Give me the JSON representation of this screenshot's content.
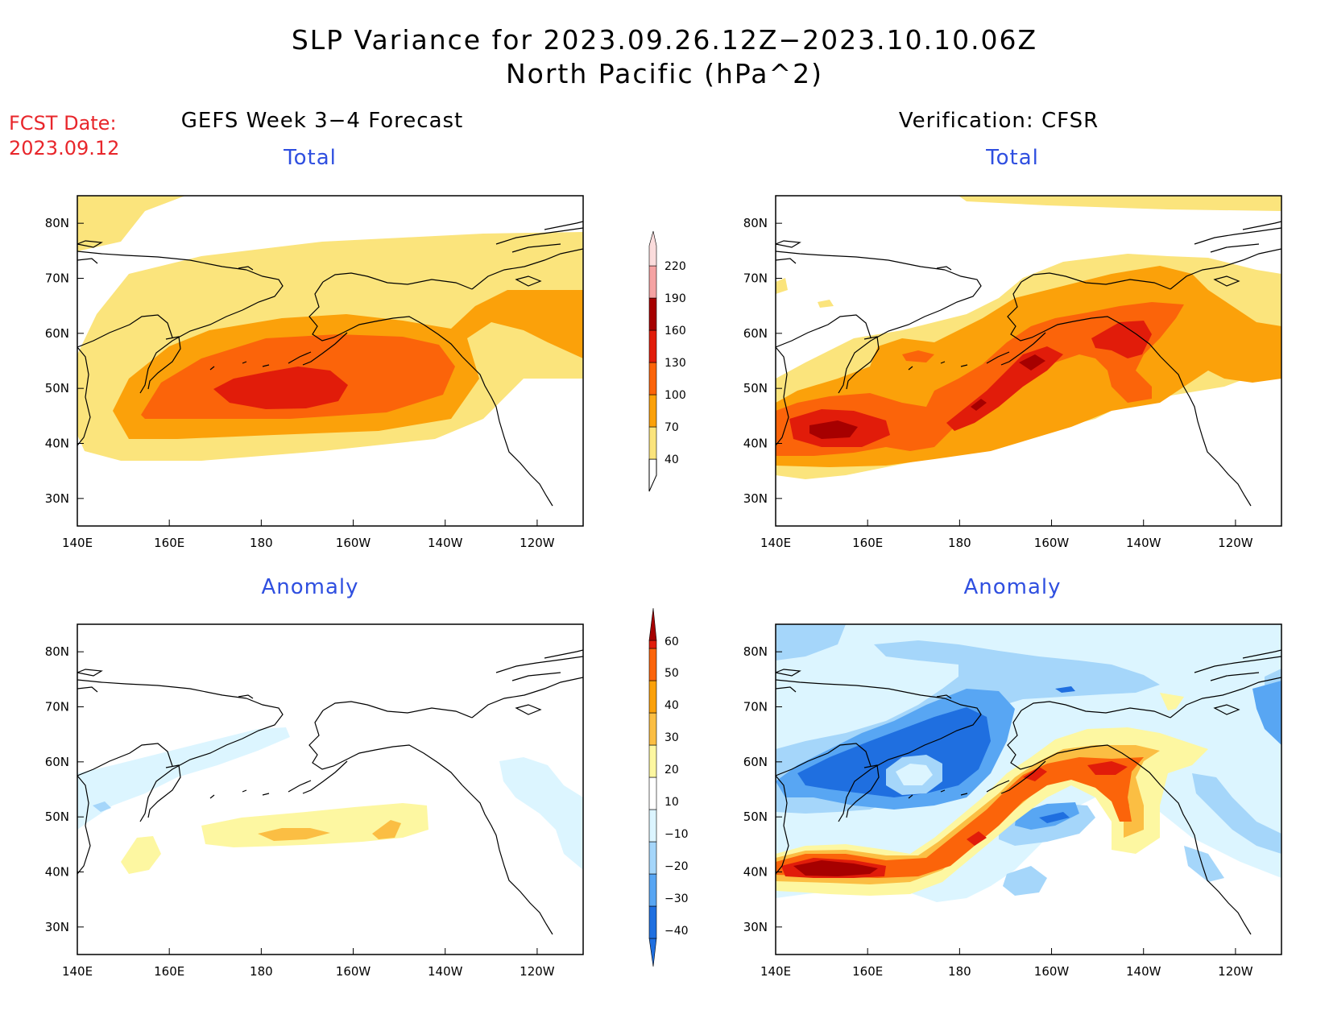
{
  "title": {
    "line1": "SLP Variance for 2023.09.26.12Z−2023.10.10.06Z",
    "line2": "North Pacific (hPa^2)"
  },
  "forecast_date": {
    "label": "FCST Date:",
    "value": "2023.09.12"
  },
  "columns": {
    "left": "GEFS Week 3−4 Forecast",
    "right": "Verification: CFSR"
  },
  "panel_titles": {
    "total": "Total",
    "anomaly": "Anomaly"
  },
  "axes": {
    "lon_ticks": [
      "140E",
      "160E",
      "180",
      "160W",
      "140W",
      "120W"
    ],
    "lat_ticks": [
      "80N",
      "70N",
      "60N",
      "50N",
      "40N",
      "30N"
    ],
    "lon_values": [
      140,
      160,
      180,
      200,
      220,
      240
    ],
    "lat_values": [
      80,
      70,
      60,
      50,
      40,
      30
    ],
    "lon_range": [
      140,
      250
    ],
    "lat_range": [
      25,
      85
    ]
  },
  "colorbars": {
    "total": {
      "levels": [
        "40",
        "70",
        "100",
        "130",
        "160",
        "190",
        "220"
      ],
      "colors": [
        "#fbe47c",
        "#fba10a",
        "#fb640a",
        "#e11c0a",
        "#a60000",
        "#f5a3a3",
        "#fbdcdc"
      ]
    },
    "anomaly": {
      "levels": [
        "60",
        "50",
        "40",
        "30",
        "20",
        "10",
        "−10",
        "−20",
        "−30",
        "−40"
      ],
      "colors": [
        "#a60000",
        "#e11c0a",
        "#fb640a",
        "#fba10a",
        "#fbbe43",
        "#fdf7a1",
        "#ffffff",
        "#dcf5ff",
        "#a5d6fa",
        "#58a6f3",
        "#1f6fe0"
      ]
    }
  }
}
